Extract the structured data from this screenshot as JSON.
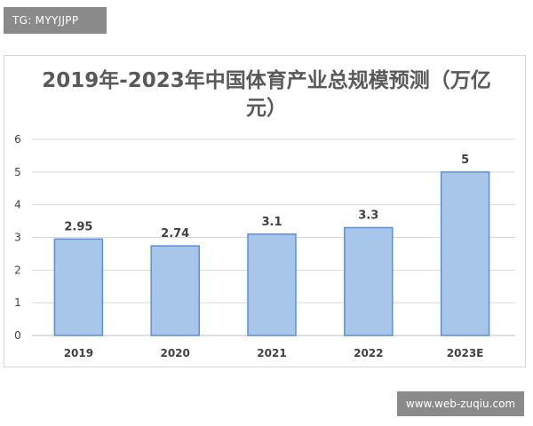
{
  "watermark_top": "TG: MYYJJPP",
  "watermark_bottom": "www.web-zuqiu.com",
  "chart_data": {
    "type": "bar",
    "title": "2019年-2023年中国体育产业总规模预测（万亿元）",
    "categories": [
      "2019",
      "2020",
      "2021",
      "2022",
      "2023E"
    ],
    "values": [
      2.95,
      2.74,
      3.1,
      3.3,
      5
    ],
    "value_labels": [
      "2.95",
      "2.74",
      "3.1",
      "3.3",
      "5"
    ],
    "ylim": [
      0,
      6
    ],
    "yticks": [
      0,
      1,
      2,
      3,
      4,
      5,
      6
    ],
    "xlabel": "",
    "ylabel": "",
    "grid": true,
    "legend": "none",
    "colors": {
      "bar_fill": "#a8c5ea",
      "bar_stroke": "#5b8fd6",
      "grid": "#d9d9d9",
      "text": "#404040"
    }
  }
}
